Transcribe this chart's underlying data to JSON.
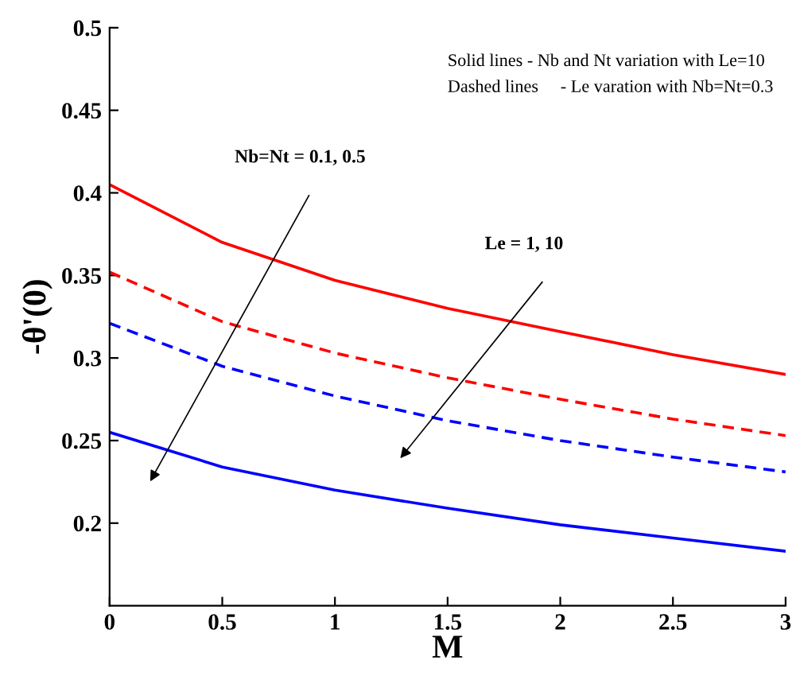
{
  "chart_data": {
    "type": "line",
    "xlabel": "M",
    "ylabel": "-θ'(0)",
    "x": [
      0,
      0.5,
      1,
      1.5,
      2,
      2.5,
      3
    ],
    "series": [
      {
        "color": "#ff0000",
        "line_style": "solid",
        "values": [
          0.405,
          0.37,
          0.347,
          0.33,
          0.316,
          0.302,
          0.29
        ]
      },
      {
        "color": "#ff0000",
        "line_style": "dashed",
        "values": [
          0.352,
          0.322,
          0.303,
          0.288,
          0.275,
          0.263,
          0.253
        ]
      },
      {
        "color": "#0000ff",
        "line_style": "dashed",
        "values": [
          0.321,
          0.295,
          0.277,
          0.262,
          0.25,
          0.24,
          0.231
        ]
      },
      {
        "color": "#0000ff",
        "line_style": "solid",
        "values": [
          0.255,
          0.234,
          0.22,
          0.209,
          0.199,
          0.191,
          0.183
        ]
      }
    ],
    "xlim": [
      0,
      3
    ],
    "ylim": [
      0.15,
      0.5
    ],
    "xticks": [
      0,
      0.5,
      1,
      1.5,
      2,
      2.5,
      3
    ],
    "yticks": [
      0.2,
      0.25,
      0.3,
      0.35,
      0.4,
      0.45,
      0.5
    ],
    "grid": false,
    "legend": false,
    "marker": "none",
    "annotations": [
      "Solid lines - Nb and Nt variation with Le=10",
      "Dashed lines     - Le varation with Nb=Nt=0.3",
      "Nb=Nt = 0.1, 0.5",
      "Le = 1, 10"
    ]
  }
}
